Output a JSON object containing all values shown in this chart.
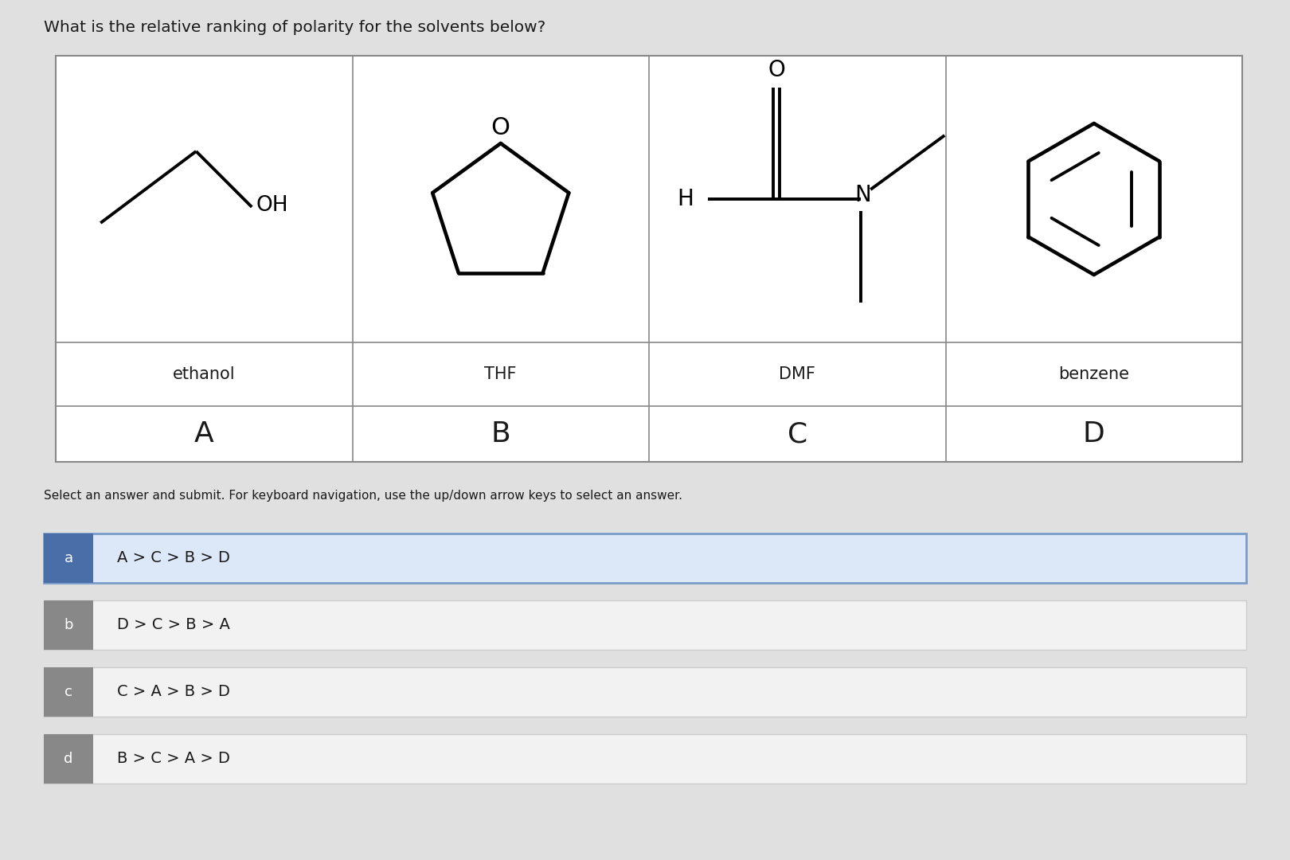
{
  "question": "What is the relative ranking of polarity for the solvents below?",
  "instruction": "Select an answer and submit. For keyboard navigation, use the up/down arrow keys to select an answer.",
  "solvents": [
    {
      "name": "ethanol",
      "label": "A"
    },
    {
      "name": "THF",
      "label": "B"
    },
    {
      "name": "DMF",
      "label": "C"
    },
    {
      "name": "benzene",
      "label": "D"
    }
  ],
  "answers": [
    {
      "key": "a",
      "text": "A > C > B > D",
      "selected": true
    },
    {
      "key": "b",
      "text": "D > C > B > A",
      "selected": false
    },
    {
      "key": "c",
      "text": "C > A > B > D",
      "selected": false
    },
    {
      "key": "d",
      "text": "B > C > A > D",
      "selected": false
    }
  ],
  "bg_color": "#e0e0e0",
  "table_bg": "#f0f0f0",
  "cell_bg": "#f8f8f8",
  "selected_bg": "#dce8f7",
  "selected_border": "#7a9cc8",
  "answer_bg": "#f2f2f2",
  "answer_border": "#cccccc",
  "label_sel_bg": "#4a6fa8",
  "label_unsel_bg": "#888888",
  "label_text": "#ffffff",
  "table_border": "#888888",
  "text_color": "#1a1a1a",
  "mol_lw": 2.8
}
